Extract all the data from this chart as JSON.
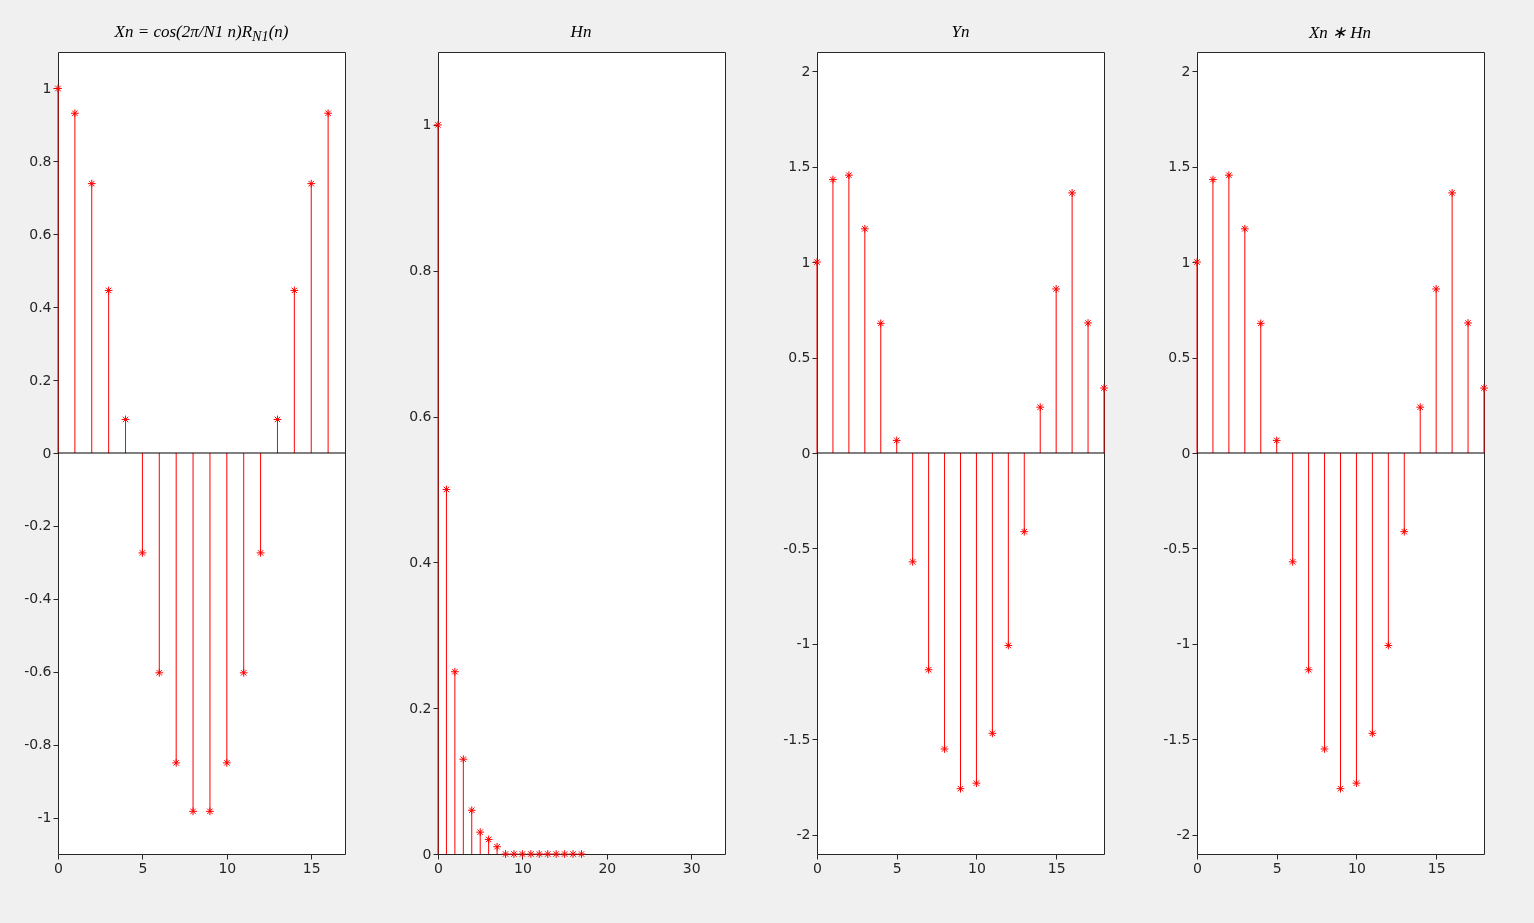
{
  "chart_data": [
    {
      "type": "lollipop",
      "title": "Xn = cos(2π/N1 n)R$_{N1}$(n)",
      "color": "#ff0000",
      "marker": "cross",
      "grid": false,
      "x": [
        0,
        1,
        2,
        3,
        4,
        5,
        6,
        7,
        8,
        9,
        10,
        11,
        12,
        13,
        14,
        15,
        16
      ],
      "values": [
        1,
        0.932,
        0.739,
        0.446,
        0.092,
        -0.274,
        -0.603,
        -0.85,
        -0.983,
        -0.983,
        -0.85,
        -0.603,
        -0.274,
        0.092,
        0.446,
        0.739,
        0.932
      ],
      "xlim": [
        0,
        17
      ],
      "xticks": [
        0,
        5,
        10,
        15
      ],
      "ylim": [
        -1.1,
        1.1
      ],
      "yticks": [
        -1,
        -0.8,
        -0.6,
        -0.4,
        -0.2,
        0,
        0.2,
        0.4,
        0.6,
        0.8,
        1
      ],
      "ref_lines": [
        {
          "axis": "y",
          "value": 0,
          "color": "#000000"
        }
      ]
    },
    {
      "type": "lollipop",
      "title": "Hn",
      "color": "#ff0000",
      "marker": "cross",
      "grid": false,
      "x": [
        0,
        1,
        2,
        3,
        4,
        5,
        6,
        7,
        8,
        9,
        10,
        11,
        12,
        13,
        14,
        15,
        16,
        17
      ],
      "values": [
        1,
        0.5,
        0.25,
        0.13,
        0.06,
        0.03,
        0.02,
        0.01,
        0,
        0,
        0,
        0,
        0,
        0,
        0,
        0,
        0,
        0
      ],
      "xlim": [
        0,
        34
      ],
      "xticks": [
        0,
        10,
        20,
        30
      ],
      "ylim": [
        0,
        1.1
      ],
      "yticks": [
        0,
        0.2,
        0.4,
        0.6,
        0.8,
        1
      ]
    },
    {
      "type": "lollipop",
      "title": "Yn",
      "color": "#ff0000",
      "marker": "cross",
      "grid": false,
      "x": [
        0,
        1,
        2,
        3,
        4,
        5,
        6,
        7,
        8,
        9,
        10,
        11,
        12,
        13,
        14,
        15,
        16,
        17,
        18
      ],
      "values": [
        1,
        1.432,
        1.455,
        1.174,
        0.679,
        0.066,
        -0.57,
        -1.135,
        -1.55,
        -1.758,
        -1.729,
        -1.468,
        -1.008,
        -0.412,
        0.24,
        0.859,
        1.362,
        0.681,
        0.34
      ],
      "xlim": [
        0,
        18
      ],
      "xticks": [
        0,
        5,
        10,
        15
      ],
      "ylim": [
        -2.1,
        2.1
      ],
      "yticks": [
        -2,
        -1.5,
        -1,
        -0.5,
        0,
        0.5,
        1,
        1.5,
        2
      ],
      "ref_lines": [
        {
          "axis": "y",
          "value": 0,
          "color": "#000000"
        }
      ]
    },
    {
      "type": "lollipop",
      "title": "Xn ∗ Hn",
      "color": "#ff0000",
      "marker": "cross",
      "grid": false,
      "x": [
        0,
        1,
        2,
        3,
        4,
        5,
        6,
        7,
        8,
        9,
        10,
        11,
        12,
        13,
        14,
        15,
        16,
        17,
        18
      ],
      "values": [
        1,
        1.432,
        1.455,
        1.174,
        0.679,
        0.066,
        -0.57,
        -1.135,
        -1.55,
        -1.758,
        -1.729,
        -1.468,
        -1.008,
        -0.412,
        0.24,
        0.859,
        1.362,
        0.681,
        0.34
      ],
      "xlim": [
        0,
        18
      ],
      "xticks": [
        0,
        5,
        10,
        15
      ],
      "ylim": [
        -2.1,
        2.1
      ],
      "yticks": [
        -2,
        -1.5,
        -1,
        -0.5,
        0,
        0.5,
        1,
        1.5,
        2
      ],
      "ref_lines": [
        {
          "axis": "y",
          "value": 0,
          "color": "#000000"
        }
      ]
    }
  ]
}
